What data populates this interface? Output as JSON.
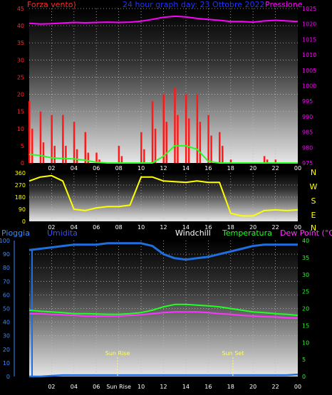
{
  "header": {
    "left_label": "Forza vento)",
    "title": "24 hour graph day: 23 Ottobre 2022",
    "right_label": "Pressione"
  },
  "wind": {
    "y_ticks": [
      "45",
      "40",
      "35",
      "30",
      "25",
      "20",
      "15",
      "10",
      "5",
      "0"
    ],
    "pressure_ticks": [
      "1025",
      "1020",
      "1015",
      "1010",
      "1005",
      "1000",
      "995",
      "990",
      "985",
      "980",
      "975"
    ]
  },
  "direction": {
    "y_ticks": [
      "360",
      "270",
      "180",
      "90",
      "0"
    ],
    "compass": [
      "N",
      "W",
      "S",
      "E",
      "N"
    ]
  },
  "lower": {
    "labels": {
      "rain": "Pioggia",
      "humidity": "Umidita",
      "windchill": "Windchill",
      "temp": "Temperatura",
      "dew": "Dew Point (°C)"
    },
    "left_ticks": [
      "100",
      "90",
      "80",
      "70",
      "60",
      "50",
      "40",
      "30",
      "20",
      "10",
      "0"
    ],
    "right_ticks": [
      "40",
      "35",
      "30",
      "25",
      "20",
      "15",
      "10",
      "5",
      "0"
    ],
    "sunrise": "Sun Rise",
    "sunset": "Sun Set"
  },
  "x_ticks": [
    "02",
    "04",
    "06",
    "08",
    "10",
    "12",
    "14",
    "16",
    "18",
    "20",
    "22",
    "00"
  ],
  "x_ticks_bottom": [
    "02",
    "04",
    "06",
    "Sun Rise",
    "10",
    "12",
    "14",
    "16",
    "18",
    "20",
    "22",
    "00"
  ],
  "colors": {
    "wind_axis": "#ff2a2a",
    "pressure": "#ff00ff",
    "title": "#2233ff",
    "direction": "#ffff00",
    "compass": "#ffff00",
    "rain": "#3a8cff",
    "humidity": "#3a4cff",
    "windchill": "#ffffff",
    "temp": "#22ff22",
    "dew": "#ff33ff"
  },
  "chart_data": {
    "type": "line",
    "hours": [
      0,
      1,
      2,
      3,
      4,
      5,
      6,
      7,
      8,
      9,
      10,
      11,
      12,
      13,
      14,
      15,
      16,
      17,
      18,
      19,
      20,
      21,
      22,
      23,
      24
    ],
    "wind_speed": [
      10,
      6,
      5,
      5,
      4,
      3,
      1,
      0,
      2,
      0,
      4,
      10,
      12,
      14,
      13,
      12,
      8,
      5,
      0,
      0,
      0,
      1,
      0,
      0,
      0
    ],
    "wind_gust": [
      18,
      15,
      14,
      14,
      12,
      9,
      3,
      0,
      5,
      0,
      9,
      18,
      20,
      22,
      20,
      20,
      14,
      9,
      1,
      0,
      0,
      2,
      1,
      0,
      0
    ],
    "wind_avg": [
      2.5,
      2.2,
      1.5,
      1.3,
      1.2,
      0.8,
      0.2,
      0,
      0,
      0,
      0,
      0,
      2,
      5,
      5,
      4,
      0.5,
      0,
      0,
      0,
      0,
      0,
      0,
      0,
      0
    ],
    "pressure": [
      1020.2,
      1020.0,
      1020.1,
      1020.3,
      1020.5,
      1020.4,
      1020.5,
      1020.6,
      1020.5,
      1020.6,
      1020.9,
      1021.5,
      1022.2,
      1022.5,
      1022.3,
      1021.8,
      1021.5,
      1021.2,
      1020.8,
      1020.8,
      1020.6,
      1021.0,
      1021.2,
      1021.0,
      1020.8
    ],
    "wind_direction": [
      300,
      330,
      340,
      300,
      90,
      80,
      100,
      110,
      110,
      120,
      330,
      330,
      300,
      295,
      290,
      300,
      290,
      290,
      60,
      40,
      40,
      80,
      85,
      80,
      85
    ],
    "humidity": [
      93,
      94,
      95,
      96,
      97,
      97,
      97,
      98,
      98,
      98,
      98,
      96,
      90,
      87,
      86,
      87,
      88,
      90,
      92,
      94,
      96,
      97,
      97,
      97,
      97
    ],
    "temperature": [
      19.5,
      19.2,
      19,
      18.8,
      18.5,
      18.5,
      18.4,
      18.3,
      18.3,
      18.5,
      18.8,
      19.5,
      20.5,
      21.2,
      21.2,
      21,
      20.8,
      20.5,
      20,
      19.5,
      19,
      18.8,
      18.5,
      18.3,
      18.0
    ],
    "dew_point": [
      18.5,
      18.5,
      18.3,
      18.2,
      18.0,
      17.8,
      17.8,
      17.8,
      17.8,
      18,
      18.2,
      18.5,
      18.8,
      19,
      19,
      19,
      18.8,
      18.5,
      18.3,
      18,
      17.8,
      17.6,
      17.5,
      17.3,
      17.2
    ],
    "rain": [
      0,
      0,
      0.5,
      1,
      1,
      1,
      1,
      1,
      1,
      1,
      1,
      1,
      1,
      1,
      1,
      1,
      1,
      1,
      1,
      1,
      1,
      1,
      1,
      1,
      1.5
    ],
    "sunrise_hour": 7.9,
    "sunset_hour": 18.2,
    "wind_ylim": [
      0,
      45
    ],
    "pressure_ylim": [
      975,
      1025
    ],
    "direction_ylim": [
      0,
      360
    ],
    "humidity_ylim": [
      0,
      100
    ],
    "temp_ylim": [
      0,
      40
    ],
    "grid": true
  }
}
